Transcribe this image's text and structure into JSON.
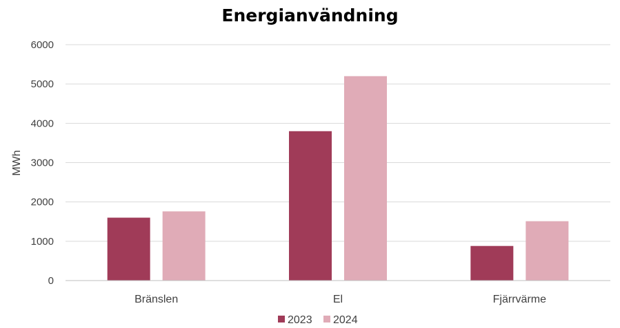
{
  "chart_data": {
    "type": "bar",
    "title": "Energianvändning",
    "ylabel": "MWh",
    "xlabel": "",
    "categories": [
      "Bränslen",
      "El",
      "Fjärrvärme"
    ],
    "ylim": [
      0,
      6000
    ],
    "yticks": [
      0,
      1000,
      2000,
      3000,
      4000,
      5000,
      6000
    ],
    "grid": true,
    "legend_position": "bottom",
    "series": [
      {
        "name": "2023",
        "values": [
          1600,
          3800,
          880
        ],
        "color": "#A03B58"
      },
      {
        "name": "2024",
        "values": [
          1760,
          5200,
          1510
        ],
        "color": "#E0ABB7"
      }
    ]
  }
}
